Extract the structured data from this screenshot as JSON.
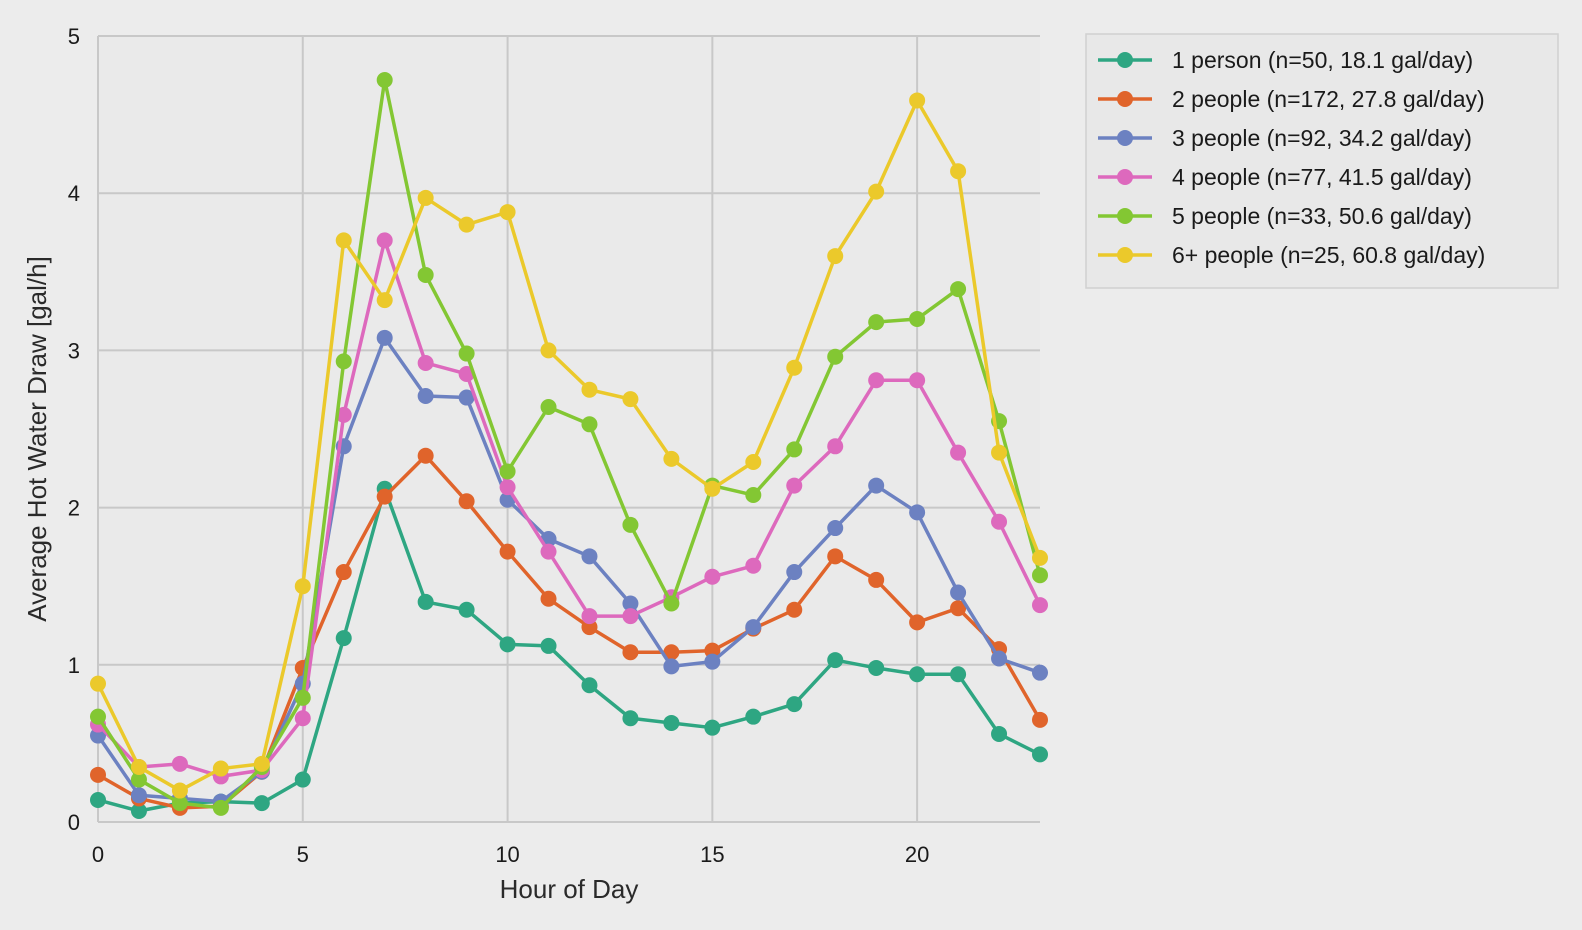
{
  "chart_data": {
    "type": "line",
    "title": "",
    "xlabel": "Hour of Day",
    "ylabel": "Average Hot Water Draw [gal/h]",
    "xlim": [
      0,
      23
    ],
    "ylim": [
      0,
      5
    ],
    "x_ticks": [
      0,
      5,
      10,
      15,
      20
    ],
    "y_ticks": [
      0,
      1,
      2,
      3,
      4,
      5
    ],
    "grid": true,
    "legend_position": "outside-top-right",
    "x": [
      0,
      1,
      2,
      3,
      4,
      5,
      6,
      7,
      8,
      9,
      10,
      11,
      12,
      13,
      14,
      15,
      16,
      17,
      18,
      19,
      20,
      21,
      22,
      23
    ],
    "series": [
      {
        "name": "1 person (n=50, 18.1 gal/day)",
        "color": "#2ea682",
        "values": [
          0.14,
          0.07,
          0.12,
          0.13,
          0.12,
          0.27,
          1.17,
          2.12,
          1.4,
          1.35,
          1.13,
          1.12,
          0.87,
          0.66,
          0.63,
          0.6,
          0.67,
          0.75,
          1.03,
          0.98,
          0.94,
          0.94,
          0.56,
          0.43
        ]
      },
      {
        "name": "2 people (n=172, 27.8 gal/day)",
        "color": "#e0642b",
        "values": [
          0.3,
          0.15,
          0.09,
          0.1,
          0.32,
          0.98,
          1.59,
          2.07,
          2.33,
          2.04,
          1.72,
          1.42,
          1.24,
          1.08,
          1.08,
          1.09,
          1.23,
          1.35,
          1.69,
          1.54,
          1.27,
          1.36,
          1.1,
          0.65
        ]
      },
      {
        "name": "3 people (n=92, 34.2 gal/day)",
        "color": "#6c81c1",
        "values": [
          0.55,
          0.17,
          0.15,
          0.13,
          0.32,
          0.88,
          2.39,
          3.08,
          2.71,
          2.7,
          2.05,
          1.8,
          1.69,
          1.39,
          0.99,
          1.02,
          1.24,
          1.59,
          1.87,
          2.14,
          1.97,
          1.46,
          1.04,
          0.95
        ]
      },
      {
        "name": "4 people (n=77, 41.5 gal/day)",
        "color": "#dd69bd",
        "values": [
          0.62,
          0.35,
          0.37,
          0.29,
          0.33,
          0.66,
          2.59,
          3.7,
          2.92,
          2.85,
          2.13,
          1.72,
          1.31,
          1.31,
          1.43,
          1.56,
          1.63,
          2.14,
          2.39,
          2.81,
          2.81,
          2.35,
          1.91,
          1.38
        ]
      },
      {
        "name": "5 people (n=33, 50.6 gal/day)",
        "color": "#83c733",
        "values": [
          0.67,
          0.27,
          0.12,
          0.09,
          0.35,
          0.79,
          2.93,
          4.72,
          3.48,
          2.98,
          2.23,
          2.64,
          2.53,
          1.89,
          1.39,
          2.14,
          2.08,
          2.37,
          2.96,
          3.18,
          3.2,
          3.39,
          2.55,
          1.57
        ]
      },
      {
        "name": "6+ people (n=25, 60.8 gal/day)",
        "color": "#ebc92b",
        "values": [
          0.88,
          0.35,
          0.2,
          0.34,
          0.37,
          1.5,
          3.7,
          3.32,
          3.97,
          3.8,
          3.88,
          3.0,
          2.75,
          2.69,
          2.31,
          2.12,
          2.29,
          2.89,
          3.6,
          4.01,
          4.59,
          4.14,
          2.35,
          1.68
        ]
      }
    ]
  }
}
